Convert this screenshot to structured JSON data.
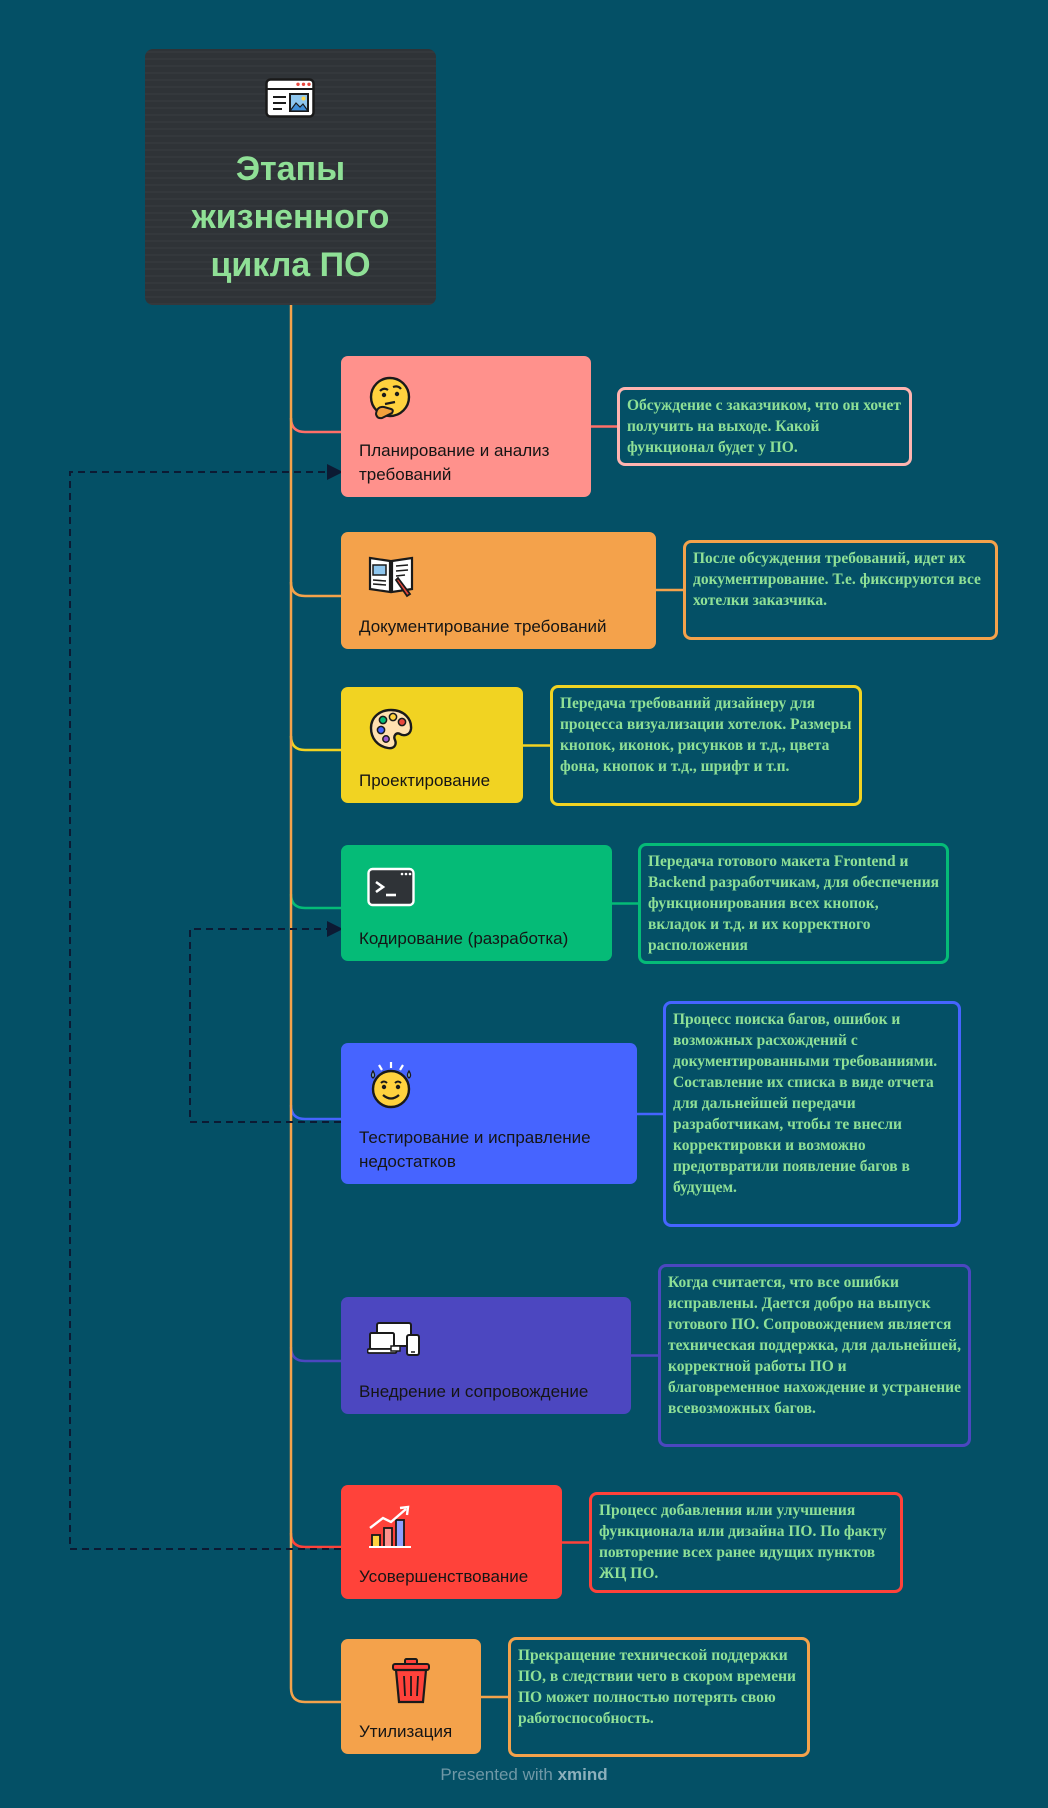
{
  "root": {
    "title": "Этапы\nжизненного\nцикла ПО",
    "icon": "browser-window-icon"
  },
  "colors": {
    "background": "#045066",
    "trunk": "#f4a24b",
    "root_box": "#2f3337",
    "title": "#8fe096",
    "note_text": "#8fe096",
    "dashed_link": "#0c1a33"
  },
  "stages": [
    {
      "id": "planning",
      "label": "Планирование и анализ\nтребований",
      "color": "#ff918c",
      "line": "#ff6f68",
      "icon": "thinking-face-icon",
      "note": "Обсуждение с заказчиком, что он хочет получить на выходе. Какой функционал будет у ПО."
    },
    {
      "id": "documentation",
      "label": "Документирование требований",
      "color": "#f4a24b",
      "line": "#f4a24b",
      "icon": "book-pen-icon",
      "note": "После обсуждения требований, идет их документирование. Т.е. фиксируются все хотелки заказчика."
    },
    {
      "id": "design",
      "label": "Проектирование",
      "color": "#f1d322",
      "line": "#f1d322",
      "icon": "artist-palette-icon",
      "note": "Передача требований дизайнеру для процесса визуализации хотелок. Размеры кнопок, иконок, рисунков и т.д., цвета фона, кнопок и т.д., шрифт и т.п."
    },
    {
      "id": "coding",
      "label": "Кодирование (разработка)",
      "color": "#05bb77",
      "line": "#05bb77",
      "icon": "terminal-icon",
      "note": "Передача готового макета Frontend и Backend разработчикам, для обеспечения функционирования всех кнопок, вкладок и т.д. и их корректного расположения"
    },
    {
      "id": "testing",
      "label": "Тестирование и исправление\nнедостатков",
      "color": "#4664ff",
      "line": "#4664ff",
      "icon": "sweating-face-icon",
      "note": "Процесс поиска багов, ошибок и возможных расхождений с документированными требованиями. Составление их списка в виде отчета для дальнейшей передачи разработчикам, чтобы те внесли корректировки и возможно предотвратили появление багов в будущем."
    },
    {
      "id": "deployment",
      "label": "Внедрение и сопровождение",
      "color": "#4c47c0",
      "line": "#4c47c0",
      "icon": "devices-icon",
      "note": "Когда считается, что все ошибки исправлены. Дается добро на выпуск готового ПО. Сопровождением является техническая поддержка, для дальнейшей, корректной работы ПО и благовременное нахождение и устранение всевозможных багов."
    },
    {
      "id": "improvement",
      "label": "Усовершенствование",
      "color": "#ff423a",
      "line": "#ff423a",
      "icon": "bar-chart-icon",
      "note": "Процесс добавления или улучшения функционала или дизайна ПО. По факту повторение всех ранее идущих пунктов ЖЦ ПО."
    },
    {
      "id": "disposal",
      "label": "Утилизация",
      "color": "#f4a24b",
      "line": "#f4a24b",
      "icon": "trash-can-icon",
      "note": "Прекращение технической поддержки ПО, в следствии чего в скором времени ПО может полностью потерять свою работоспособность."
    }
  ],
  "loops": [
    {
      "from": "improvement",
      "to": "planning"
    },
    {
      "from": "testing",
      "to": "coding"
    }
  ],
  "footer": {
    "text": "Presented with",
    "brand": "xmind"
  }
}
